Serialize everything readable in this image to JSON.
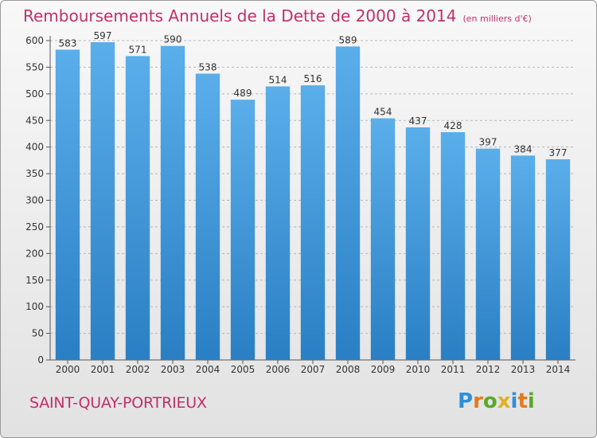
{
  "title": "Remboursements Annuels de la Dette de 2000 à 2014",
  "unit_note": "(en milliers d'€)",
  "city": "SAINT-QUAY-PORTRIEUX",
  "logo": {
    "text": "Proxiti",
    "letters": [
      {
        "ch": "P",
        "color": "#2f8fd8"
      },
      {
        "ch": "r",
        "color": "#e07b1f"
      },
      {
        "ch": "o",
        "color": "#5aa82c"
      },
      {
        "ch": "x",
        "color": "#e0b21f"
      },
      {
        "ch": "i",
        "color": "#2f8fd8"
      },
      {
        "ch": "t",
        "color": "#e07b1f"
      },
      {
        "ch": "i",
        "color": "#5aa82c"
      }
    ]
  },
  "colors": {
    "bar_top": "#5aaeea",
    "bar_bottom": "#2a7fc4",
    "title": "#c0306a"
  },
  "chart_data": {
    "type": "bar",
    "categories": [
      "2000",
      "2001",
      "2002",
      "2003",
      "2004",
      "2005",
      "2006",
      "2007",
      "2008",
      "2009",
      "2010",
      "2011",
      "2012",
      "2013",
      "2014"
    ],
    "values": [
      583,
      597,
      571,
      590,
      538,
      489,
      514,
      516,
      589,
      454,
      437,
      428,
      397,
      384,
      377
    ],
    "ylim": [
      0,
      600
    ],
    "yticks": [
      0,
      50,
      100,
      150,
      200,
      250,
      300,
      350,
      400,
      450,
      500,
      550,
      600
    ],
    "grid": true,
    "data_labels": true
  }
}
